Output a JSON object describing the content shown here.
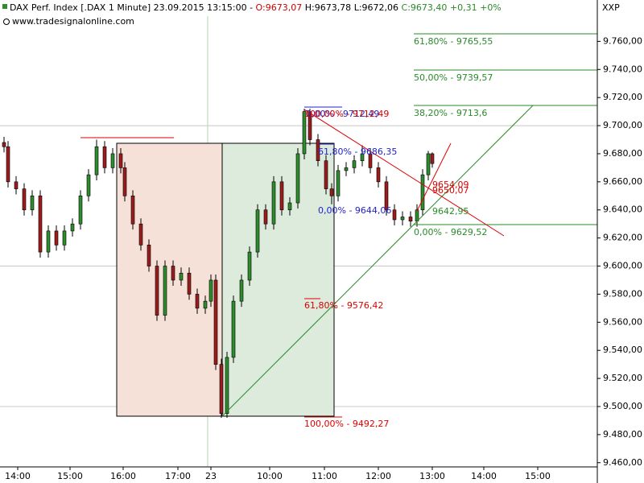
{
  "chart_data": {
    "type": "candlestick",
    "title": "DAX Perf. Index [.DAX  1 Minute] 23.09.2015 13:15:00",
    "quote_open": "O:9673,07",
    "quote_high": "H:9673,78",
    "quote_low": "L:9672,06",
    "quote_close": "C:9673,40",
    "quote_change": "+0,31 +0%",
    "subtitle": "www.tradesignalonline.com",
    "symbol": "XXP",
    "up_color": "#2e8b2e",
    "down_color": "#9b1c1c",
    "x": [
      5,
      10,
      20,
      30,
      40,
      50,
      60,
      70,
      80,
      90,
      100,
      110,
      120,
      130,
      140,
      150,
      155,
      165,
      175,
      185,
      195,
      205,
      215,
      225,
      235,
      245,
      255,
      262,
      268,
      275,
      282,
      290,
      300,
      310,
      320,
      330,
      340,
      350,
      360,
      370,
      378,
      385,
      395,
      405,
      412,
      420,
      430,
      440,
      450,
      460,
      470,
      480,
      490,
      500,
      510,
      518,
      525,
      532,
      537
    ],
    "open": [
      9688,
      9685,
      9660,
      9655,
      9640,
      9650,
      9610,
      9625,
      9615,
      9625,
      9630,
      9650,
      9665,
      9685,
      9670,
      9680,
      9670,
      9650,
      9630,
      9615,
      9600,
      9565,
      9600,
      9590,
      9595,
      9580,
      9570,
      9575,
      9590,
      9530,
      9495,
      9535,
      9575,
      9590,
      9610,
      9640,
      9630,
      9660,
      9640,
      9645,
      9680,
      9710,
      9690,
      9675,
      9655,
      9650,
      9668,
      9670,
      9675,
      9680,
      9670,
      9660,
      9640,
      9633,
      9635,
      9632,
      9640,
      9665,
      9680
    ],
    "high": [
      9692,
      9689,
      9664,
      9659,
      9654,
      9654,
      9629,
      9629,
      9629,
      9634,
      9654,
      9669,
      9690,
      9689,
      9684,
      9684,
      9674,
      9654,
      9634,
      9619,
      9604,
      9604,
      9604,
      9599,
      9599,
      9584,
      9579,
      9594,
      9594,
      9534,
      9539,
      9579,
      9594,
      9614,
      9644,
      9644,
      9664,
      9664,
      9649,
      9684,
      9712,
      9712,
      9694,
      9679,
      9659,
      9672,
      9674,
      9679,
      9686,
      9684,
      9674,
      9664,
      9644,
      9639,
      9639,
      9644,
      9669,
      9682,
      9681
    ],
    "low": [
      9681,
      9656,
      9651,
      9636,
      9636,
      9606,
      9606,
      9611,
      9611,
      9621,
      9626,
      9646,
      9661,
      9666,
      9666,
      9666,
      9646,
      9626,
      9611,
      9596,
      9561,
      9561,
      9586,
      9586,
      9576,
      9566,
      9566,
      9571,
      9526,
      9492,
      9492,
      9531,
      9571,
      9586,
      9606,
      9626,
      9626,
      9636,
      9636,
      9641,
      9676,
      9686,
      9671,
      9651,
      9644,
      9646,
      9664,
      9666,
      9671,
      9666,
      9656,
      9636,
      9629,
      9629,
      9628,
      9628,
      9636,
      9661,
      9670
    ],
    "close": [
      9685,
      9660,
      9655,
      9640,
      9650,
      9610,
      9625,
      9615,
      9625,
      9630,
      9650,
      9665,
      9685,
      9670,
      9680,
      9670,
      9650,
      9630,
      9615,
      9600,
      9565,
      9600,
      9590,
      9595,
      9580,
      9570,
      9575,
      9590,
      9530,
      9495,
      9535,
      9575,
      9590,
      9610,
      9640,
      9630,
      9660,
      9640,
      9645,
      9680,
      9710,
      9690,
      9675,
      9655,
      9650,
      9668,
      9670,
      9675,
      9680,
      9670,
      9660,
      9640,
      9633,
      9635,
      9632,
      9640,
      9665,
      9680,
      9673
    ],
    "xlim": [
      0,
      742
    ],
    "xticks": [
      {
        "value": 22,
        "label": "14:00"
      },
      {
        "value": 87,
        "label": "15:00"
      },
      {
        "value": 153,
        "label": "16:00"
      },
      {
        "value": 221,
        "label": "17:00"
      },
      {
        "value": 262,
        "label": "23"
      },
      {
        "value": 335,
        "label": "10:00"
      },
      {
        "value": 403,
        "label": "11:00"
      },
      {
        "value": 470,
        "label": "12:00"
      },
      {
        "value": 537,
        "label": "13:00"
      },
      {
        "value": 601,
        "label": "14:00"
      },
      {
        "value": 668,
        "label": "15:00"
      }
    ],
    "ylim": [
      9457,
      9778
    ],
    "yticks": [
      {
        "value": 9460,
        "label": "9.460,00"
      },
      {
        "value": 9480,
        "label": "9.480,00"
      },
      {
        "value": 9500,
        "label": "9.500,00"
      },
      {
        "value": 9520,
        "label": "9.520,00"
      },
      {
        "value": 9540,
        "label": "9.540,00"
      },
      {
        "value": 9560,
        "label": "9.560,00"
      },
      {
        "value": 9580,
        "label": "9.580,00"
      },
      {
        "value": 9600,
        "label": "9.600,00"
      },
      {
        "value": 9620,
        "label": "9.620,00"
      },
      {
        "value": 9640,
        "label": "9.640,00"
      },
      {
        "value": 9660,
        "label": "9.660,00"
      },
      {
        "value": 9680,
        "label": "9.680,00"
      },
      {
        "value": 9700,
        "label": "9.700,00"
      },
      {
        "value": 9720,
        "label": "9.720,00"
      },
      {
        "value": 9740,
        "label": "9.740,00"
      },
      {
        "value": 9760,
        "label": "9.760,00"
      }
    ],
    "annotations": [
      "61,80% - 9765,55",
      "50,00% - 9739,57",
      "38,20% - 9713,6",
      "0,00% - 9629,52",
      "9642,95",
      "9654,09",
      "9650,07",
      "0,00% - 9712,49",
      "100,00% - 9712,49",
      "61,80% - 9686,35",
      "0,00% - 9644,06",
      "61,80% - 9576,42",
      "100,00% - 9492,27"
    ]
  }
}
